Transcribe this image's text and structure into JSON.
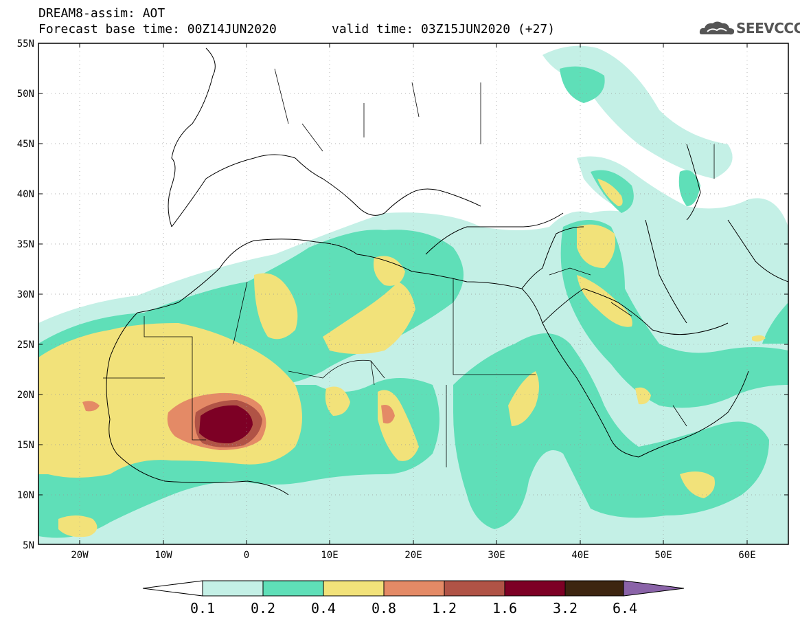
{
  "header": {
    "title": "DREAM8-assim: AOT",
    "base_time": "Forecast base time: 00Z14JUN2020",
    "valid_time": "valid time: 03Z15JUN2020 (+27)"
  },
  "logo": {
    "text": "SEEVCCC",
    "icon": "cloud-logo-icon"
  },
  "map": {
    "lat_labels": [
      "55N",
      "50N",
      "45N",
      "40N",
      "35N",
      "30N",
      "25N",
      "20N",
      "15N",
      "10N",
      "5N"
    ],
    "lon_labels": [
      "20W",
      "10W",
      "0",
      "10E",
      "20E",
      "30E",
      "40E",
      "50E",
      "60E"
    ]
  },
  "colorbar": {
    "levels": [
      "0.1",
      "0.2",
      "0.4",
      "0.8",
      "1.2",
      "1.6",
      "3.2",
      "6.4"
    ],
    "colors": [
      "#ffffff",
      "#c4f0e6",
      "#5fdfb8",
      "#f2e27a",
      "#e48a66",
      "#b05346",
      "#7d0025",
      "#3d2510",
      "#8a63a8"
    ]
  },
  "fields": {
    "c1": "#c4f0e6",
    "c2": "#5fdfb8",
    "c3": "#f2e27a",
    "c4": "#e48a66",
    "c5": "#b05346",
    "c6": "#7d0025"
  }
}
